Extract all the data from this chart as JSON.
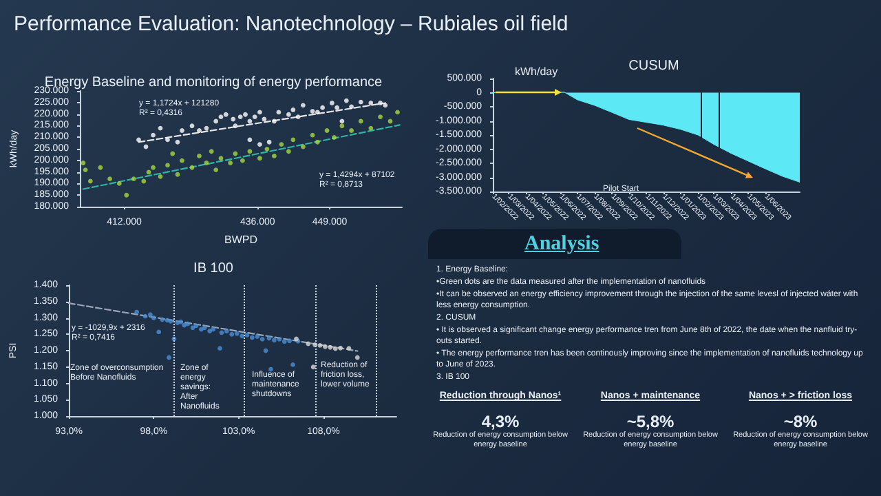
{
  "chart_data": [
    {
      "type": "other",
      "title": "Performance Evaluation:  Nanotechnology – Rubiales oil field"
    },
    {
      "type": "scatter",
      "title": "Energy Baseline and monitoring of energy performance",
      "xlabel": "BWPD",
      "ylabel": "kWh/day",
      "marker": "circle",
      "xlim": [
        404000,
        462000
      ],
      "xticks": [
        {
          "value": 412000,
          "label": "412.000"
        },
        {
          "value": 436000,
          "label": "436.000"
        },
        {
          "value": 449000,
          "label": "449.000"
        }
      ],
      "ylim": [
        180000,
        230000
      ],
      "yticks": [
        {
          "value": 180000,
          "label": "180.000"
        },
        {
          "value": 185000,
          "label": "185.000"
        },
        {
          "value": 190000,
          "label": "190.000"
        },
        {
          "value": 195000,
          "label": "195.000"
        },
        {
          "value": 200000,
          "label": "200.000"
        },
        {
          "value": 205000,
          "label": "205.000"
        },
        {
          "value": 210000,
          "label": "210.000"
        },
        {
          "value": 215000,
          "label": "215.000"
        },
        {
          "value": 220000,
          "label": "220.000"
        },
        {
          "value": 225000,
          "label": "225.000"
        },
        {
          "value": 230000,
          "label": "230.000"
        }
      ],
      "series": [
        {
          "color": "#ffffff",
          "x": [
            414600,
            415900,
            417200,
            418500,
            419800,
            421600,
            422400,
            424200,
            425500,
            426800,
            428500,
            429400,
            430300,
            431600,
            432000,
            432900,
            433800,
            434600,
            434600,
            436400,
            438100,
            435500,
            436400,
            437200,
            439000,
            439800,
            441600,
            442400,
            443300,
            444200,
            445900,
            446800,
            447700,
            449400,
            450300,
            451200,
            452000,
            452900,
            454600,
            456400,
            458100,
            459000
          ],
          "values": [
            208900,
            205900,
            210900,
            213900,
            208900,
            207900,
            212900,
            214900,
            212900,
            213900,
            216900,
            218800,
            219800,
            217800,
            214900,
            218800,
            219800,
            216900,
            208900,
            206900,
            207900,
            218800,
            220800,
            217800,
            216900,
            220800,
            219800,
            221800,
            218800,
            223800,
            221200,
            220800,
            222800,
            224800,
            222800,
            216900,
            225800,
            223200,
            225200,
            224800,
            224800,
            223800
          ]
        },
        {
          "color": "#a6d840",
          "x": [
            404600,
            405000,
            405900,
            407700,
            409400,
            411100,
            412400,
            413700,
            415500,
            416400,
            417200,
            418500,
            419800,
            420700,
            421600,
            422400,
            424200,
            425500,
            426800,
            427700,
            428500,
            429400,
            431100,
            432000,
            433300,
            434600,
            436400,
            437700,
            439000,
            440300,
            441600,
            442400,
            444200,
            445900,
            446800,
            448500,
            449800,
            451200,
            452900,
            454600,
            456400,
            458100,
            459900,
            461200
          ],
          "values": [
            198900,
            195900,
            191000,
            196900,
            192000,
            190000,
            185000,
            192000,
            191000,
            194900,
            196900,
            193000,
            197900,
            202900,
            193900,
            199900,
            196900,
            201900,
            198900,
            203900,
            195900,
            200900,
            198900,
            202900,
            199900,
            203900,
            200900,
            204900,
            201900,
            206900,
            203900,
            208900,
            205900,
            210900,
            207900,
            212900,
            209900,
            214900,
            212900,
            216900,
            213900,
            218800,
            216900,
            220800
          ]
        },
        {
          "type": "line",
          "marker": "none",
          "line_style": "dashed",
          "color": "#e6e6e6",
          "x": [
            414600,
            459000
          ],
          "values": [
            207900,
            224800
          ]
        },
        {
          "type": "line",
          "marker": "none",
          "line_style": "dashed",
          "color": "#2fb5a5",
          "x": [
            404600,
            461600
          ],
          "values": [
            187600,
            215300
          ]
        }
      ],
      "annotations": [
        "y = 1,1724x + 121280\nR² = 0,4316",
        "y = 1,4294x + 87102\nR² = 0,8713"
      ]
    },
    {
      "type": "area",
      "title": "CUSUM",
      "ylabel": "kWh/day",
      "color": "#5ce8f5",
      "x": [
        "2022-02-01",
        "2022-05-01",
        "2022-06-08",
        "2022-07-01",
        "2022-08-01",
        "2022-09-01",
        "2022-10-01",
        "2022-11-01",
        "2022-12-01",
        "2023-01-01",
        "2023-02-01",
        "2023-03-01",
        "2023-04-01",
        "2023-05-01",
        "2023-06-01",
        "2023-07-01",
        "2023-08-01"
      ],
      "values": [
        0,
        20000,
        20000,
        -250000,
        -450000,
        -700000,
        -950000,
        -1050000,
        -1150000,
        -1300000,
        -1500000,
        -1830000,
        -2150000,
        -2420000,
        -2700000,
        -2960000,
        -3170000
      ],
      "xlim": [
        "2022-02-01",
        "2023-08-01"
      ],
      "xticks": [
        {
          "value": "2022-02-01",
          "label": "1/02/2022"
        },
        {
          "value": "2022-03-01",
          "label": "1/03/2022"
        },
        {
          "value": "2022-04-01",
          "label": "1/04/2022"
        },
        {
          "value": "2022-05-01",
          "label": "1/05/2022"
        },
        {
          "value": "2022-06-01",
          "label": "1/06/2022"
        },
        {
          "value": "2022-07-01",
          "label": "1/07/2022"
        },
        {
          "value": "2022-08-01",
          "label": "1/08/2022"
        },
        {
          "value": "2022-09-01",
          "label": "1/09/2022"
        },
        {
          "value": "2022-10-01",
          "label": "1/10/2022"
        },
        {
          "value": "2022-11-01",
          "label": "1/11/2022"
        },
        {
          "value": "2022-12-01",
          "label": "1/12/2022"
        },
        {
          "value": "2023-01-01",
          "label": "1/01/2023"
        },
        {
          "value": "2023-02-01",
          "label": "1/02/2023"
        },
        {
          "value": "2023-03-01",
          "label": "1/03/2023"
        },
        {
          "value": "2023-04-01",
          "label": "1/04/2023"
        },
        {
          "value": "2023-05-01",
          "label": "1/05/2023"
        },
        {
          "value": "2023-06-01",
          "label": "1/06/2023"
        }
      ],
      "ylim": [
        -3500000,
        500000
      ],
      "yticks": [
        {
          "value": -3500000,
          "label": "-3.500.000"
        },
        {
          "value": -3000000,
          "label": "-3.000.000"
        },
        {
          "value": -2500000,
          "label": "-2.500.000"
        },
        {
          "value": -2000000,
          "label": "-2.000.000"
        },
        {
          "value": -1500000,
          "label": "-1.500.000"
        },
        {
          "value": -1000000,
          "label": "-1.000.000"
        },
        {
          "value": -500000,
          "label": "-500.000"
        },
        0,
        {
          "value": 500000,
          "label": "500.000"
        }
      ],
      "ref_lines": [
        {
          "axis": "x",
          "value": "2023-02-07",
          "color": "#1d2b3e"
        },
        {
          "axis": "x",
          "value": "2023-03-09",
          "color": "#1d2b3e"
        }
      ],
      "annotations": [
        "Pilot Start"
      ]
    },
    {
      "type": "scatter",
      "title": "IB 100",
      "ylabel": "PSI",
      "marker": "circle",
      "xlim": [
        93,
        112.3
      ],
      "xticks": [
        {
          "value": 93,
          "label": "93,0%"
        },
        {
          "value": 98,
          "label": "98,0%"
        },
        {
          "value": 103,
          "label": "103,0%"
        },
        {
          "value": 108,
          "label": "108,0%"
        }
      ],
      "ylim": [
        1000,
        1400
      ],
      "yticks": [
        {
          "value": 1000,
          "label": "1.000"
        },
        {
          "value": 1050,
          "label": "1.050"
        },
        {
          "value": 1100,
          "label": "1.100"
        },
        {
          "value": 1150,
          "label": "1.150"
        },
        {
          "value": 1200,
          "label": "1.200"
        },
        {
          "value": 1250,
          "label": "1.250"
        },
        {
          "value": 1300,
          "label": "1.300"
        },
        {
          "value": 1350,
          "label": "1.350"
        },
        {
          "value": 1400,
          "label": "1.400"
        }
      ],
      "series": [
        {
          "color": "#4a8fd6",
          "x": [
            97.0,
            97.5,
            97.8,
            98.0,
            98.3,
            98.5,
            98.8,
            98.9,
            99.0,
            99.2,
            99.4,
            99.6,
            99.8,
            100.0,
            100.3,
            100.5,
            100.8,
            101.0,
            101.3,
            101.5,
            101.9,
            102.0,
            102.3,
            102.6,
            102.9,
            103.2,
            103.5,
            103.8,
            104.1,
            104.4,
            104.6,
            104.8,
            104.9,
            105.1,
            105.4,
            105.7,
            106.0,
            106.2,
            106.5
          ],
          "values": [
            1318,
            1305,
            1310,
            1300,
            1257,
            1295,
            1293,
            1179,
            1290,
            1236,
            1285,
            1288,
            1278,
            1282,
            1270,
            1276,
            1265,
            1270,
            1260,
            1265,
            1207,
            1255,
            1260,
            1250,
            1252,
            1245,
            1248,
            1240,
            1243,
            1235,
            1200,
            1238,
            1143,
            1232,
            1235,
            1228,
            1230,
            1157,
            1229
          ]
        },
        {
          "color": "#d9d9d9",
          "x": [
            106.4,
            107.1,
            107.4,
            107.5,
            107.8,
            108.1,
            108.4,
            108.7,
            109.0,
            109.5,
            110.0
          ],
          "values": [
            1236,
            1221,
            1150,
            1218,
            1216,
            1212,
            1210,
            1206,
            1208,
            1207,
            1179
          ]
        },
        {
          "type": "line",
          "marker": "none",
          "line_style": "dashed",
          "color": "#9aa6b8",
          "x": [
            93,
            110
          ],
          "values": [
            1345,
            1199
          ]
        }
      ],
      "ref_lines": [
        {
          "axis": "x",
          "value": 99.2,
          "color": "#c9d3de",
          "line_style": "dotted"
        },
        {
          "axis": "x",
          "value": 103.3,
          "color": "#c9d3de",
          "line_style": "dotted"
        },
        {
          "axis": "x",
          "value": 107.5,
          "color": "#c9d3de",
          "line_style": "dotted"
        },
        {
          "axis": "x",
          "value": 111.1,
          "color": "#c9d3de",
          "line_style": "dotted"
        }
      ],
      "annotations": [
        "y = -1029,9x + 2316\nR² = 0,7416",
        "Zone of overconsumption\nBefore Nanofluids",
        "Zone of\nenergy\nsavings:\nAfter\nNanofluids",
        "Influence of\nmaintenance\nshutdowns",
        "Reduction of\nfriction loss,\nlower volume"
      ]
    },
    {
      "type": "other",
      "title": "Analysis",
      "annotations": [
        "1.  Energy Baseline:",
        "•Green dots are the data measured after the implementation of nanofluids",
        "•It can be observed an energy efficiency improvement through the injection of the same levesl of injected wáter with less energy consumption.",
        "2.  CUSUM",
        "• It is observed a significant change energy performance tren from June 8th of 2022, the date when the nanfluid try-outs started.",
        "• The energy performance tren has been continously improving since the implementation of nanofluids technology up to June of 2023.",
        "3.  IB 100",
        "Reduction through Nanos¹",
        "4,3%",
        "Reduction of energy consumption below energy baseline",
        "Nanos +  maintenance",
        "~5,8%",
        "Reduction of energy consumption below energy baseline",
        "Nanos  +  > friction loss",
        "~8%",
        "Reduction of energy consumption below energy baseline"
      ]
    }
  ]
}
